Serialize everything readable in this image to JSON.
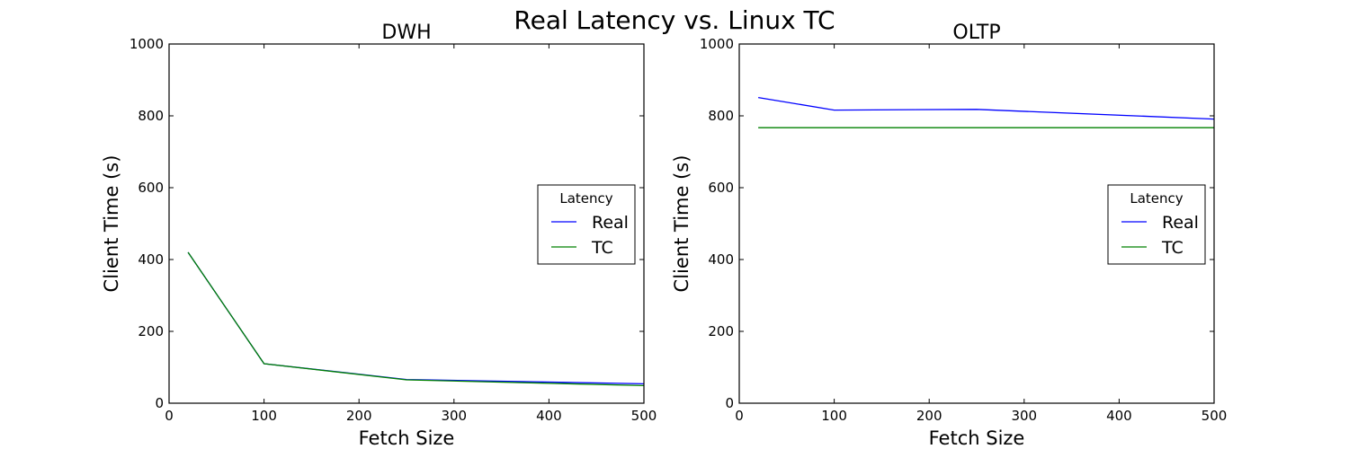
{
  "figure": {
    "title": "Real Latency vs. Linux TC",
    "background": "#ffffff"
  },
  "chart_data": [
    {
      "type": "line",
      "title": "DWH",
      "xlabel": "Fetch Size",
      "ylabel": "Client Time (s)",
      "xlim": [
        0,
        500
      ],
      "ylim": [
        0,
        1000
      ],
      "xticks": [
        0,
        100,
        200,
        300,
        400,
        500
      ],
      "yticks": [
        0,
        200,
        400,
        600,
        800,
        1000
      ],
      "grid": false,
      "legend": {
        "title": "Latency",
        "position": "center right",
        "entries": [
          "Real",
          "TC"
        ]
      },
      "x": [
        20,
        100,
        250,
        500
      ],
      "series": [
        {
          "name": "Real",
          "color": "#0000ff",
          "values": [
            420,
            110,
            66,
            54
          ]
        },
        {
          "name": "TC",
          "color": "#008000",
          "values": [
            420,
            110,
            65,
            49
          ]
        }
      ]
    },
    {
      "type": "line",
      "title": "OLTP",
      "xlabel": "Fetch Size",
      "ylabel": "Client Time (s)",
      "xlim": [
        0,
        500
      ],
      "ylim": [
        0,
        1000
      ],
      "xticks": [
        0,
        100,
        200,
        300,
        400,
        500
      ],
      "yticks": [
        0,
        200,
        400,
        600,
        800,
        1000
      ],
      "grid": false,
      "legend": {
        "title": "Latency",
        "position": "center right",
        "entries": [
          "Real",
          "TC"
        ]
      },
      "x": [
        20,
        100,
        250,
        500
      ],
      "series": [
        {
          "name": "Real",
          "color": "#0000ff",
          "values": [
            851,
            816,
            818,
            791
          ]
        },
        {
          "name": "TC",
          "color": "#008000",
          "values": [
            767,
            767,
            767,
            767
          ]
        }
      ]
    }
  ]
}
